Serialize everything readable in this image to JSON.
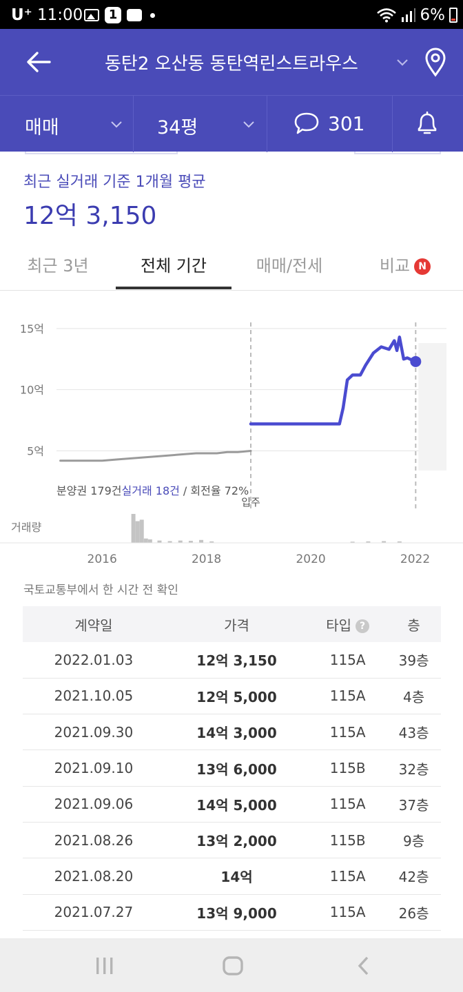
{
  "status_bar": {
    "carrier": "U⁺",
    "time": "11:00",
    "notification_count": "1",
    "battery": "6%"
  },
  "header": {
    "title": "동탄2 오산동 동탄역린스트라우스"
  },
  "filters": {
    "trade_type": "매매",
    "size": "34평",
    "comment_count": "301"
  },
  "summary": {
    "label": "최근 실거래 기준 1개월 평균",
    "price": "12억 3,150"
  },
  "tabs": [
    {
      "label": "최근 3년"
    },
    {
      "label": "전체 기간"
    },
    {
      "label": "매매/전세"
    },
    {
      "label": "비교",
      "badge": "N"
    }
  ],
  "chart_data": {
    "type": "line",
    "y_ticks": [
      "15억",
      "10억",
      "5억"
    ],
    "y_tick_values": [
      15,
      10,
      5
    ],
    "ylim": [
      3,
      15.5
    ],
    "x_ticks": [
      "2016",
      "2018",
      "2020",
      "2022"
    ],
    "x_tick_values": [
      2016,
      2018,
      2020,
      2022
    ],
    "xlim": [
      2015.1,
      2022.6
    ],
    "unit": "억",
    "series": [
      {
        "name": "분양권",
        "color": "#9a9a9a",
        "x": [
          2015.2,
          2015.5,
          2015.8,
          2016.0,
          2016.3,
          2016.6,
          2016.9,
          2017.2,
          2017.5,
          2017.8,
          2018.0,
          2018.2,
          2018.4,
          2018.6,
          2018.85
        ],
        "y": [
          4.2,
          4.2,
          4.2,
          4.2,
          4.3,
          4.4,
          4.5,
          4.6,
          4.7,
          4.8,
          4.8,
          4.8,
          4.9,
          4.9,
          5.0
        ]
      },
      {
        "name": "실거래",
        "color": "#4a4bd0",
        "x": [
          2018.85,
          2018.95,
          2019.5,
          2020.0,
          2020.4,
          2020.55,
          2020.62,
          2020.7,
          2020.8,
          2020.95,
          2021.05,
          2021.2,
          2021.35,
          2021.5,
          2021.6,
          2021.65,
          2021.7,
          2021.78,
          2021.85,
          2021.95,
          2022.01
        ],
        "y": [
          7.2,
          7.2,
          7.2,
          7.2,
          7.2,
          7.2,
          8.5,
          10.8,
          11.2,
          11.2,
          12.0,
          13.0,
          13.5,
          13.3,
          14.0,
          13.2,
          14.3,
          12.5,
          12.6,
          12.4,
          12.3
        ]
      }
    ],
    "annotations": [
      "분양권 179건",
      "실거래 18건",
      " / 회전율 72%",
      "입주"
    ],
    "volume_label": "거래량",
    "volume": [
      {
        "x": 2016.6,
        "v": 1.0
      },
      {
        "x": 2016.68,
        "v": 0.75
      },
      {
        "x": 2016.76,
        "v": 0.8
      },
      {
        "x": 2016.84,
        "v": 0.15
      },
      {
        "x": 2016.92,
        "v": 0.12
      },
      {
        "x": 2017.1,
        "v": 0.08
      },
      {
        "x": 2017.3,
        "v": 0.06
      },
      {
        "x": 2017.5,
        "v": 0.08
      },
      {
        "x": 2017.7,
        "v": 0.07
      },
      {
        "x": 2017.9,
        "v": 0.1
      },
      {
        "x": 2018.1,
        "v": 0.05
      },
      {
        "x": 2020.8,
        "v": 0.04
      },
      {
        "x": 2021.1,
        "v": 0.05
      },
      {
        "x": 2021.4,
        "v": 0.06
      },
      {
        "x": 2021.7,
        "v": 0.05
      }
    ]
  },
  "source_note": "국토교통부에서 한 시간 전 확인",
  "table": {
    "headers": [
      "계약일",
      "가격",
      "타입",
      "층"
    ],
    "help": "?",
    "rows": [
      [
        "2022.01.03",
        "12억 3,150",
        "115A",
        "39층"
      ],
      [
        "2021.10.05",
        "12억 5,000",
        "115A",
        "4층"
      ],
      [
        "2021.09.30",
        "14억 3,000",
        "115A",
        "43층"
      ],
      [
        "2021.09.10",
        "13억 6,000",
        "115B",
        "32층"
      ],
      [
        "2021.09.06",
        "14억 5,000",
        "115A",
        "37층"
      ],
      [
        "2021.08.26",
        "13억 2,000",
        "115B",
        "9층"
      ],
      [
        "2021.08.20",
        "14억",
        "115A",
        "42층"
      ],
      [
        "2021.07.27",
        "13억 9,000",
        "115A",
        "26층"
      ]
    ]
  },
  "colors": {
    "brand": "#4a4bb8",
    "series_line": "#4a4bd0",
    "badge": "#e53935"
  }
}
